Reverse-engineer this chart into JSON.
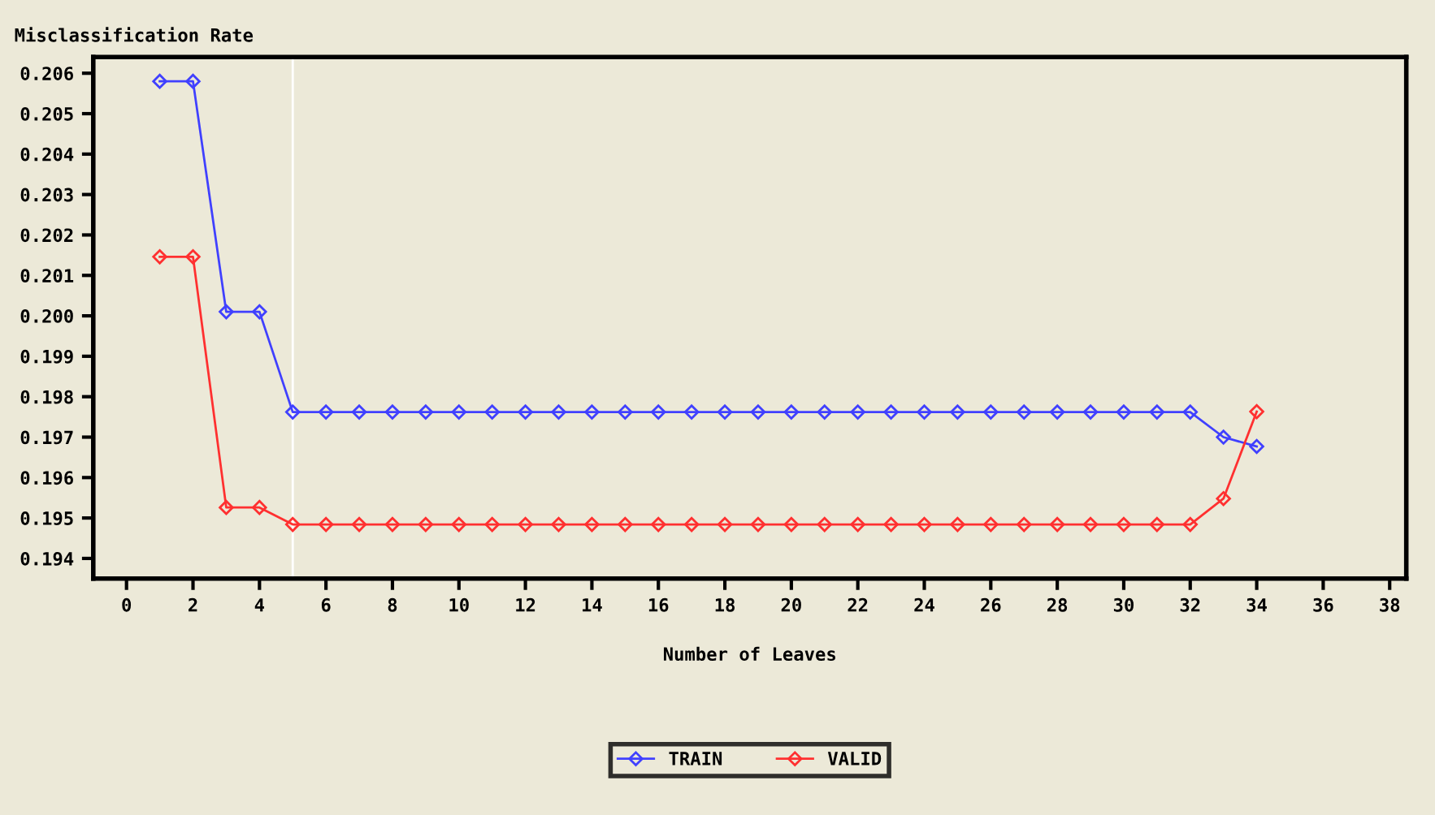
{
  "chart_data": {
    "type": "line",
    "ylabel": "Misclassification Rate",
    "xlabel": "Number of Leaves",
    "x": [
      1,
      2,
      3,
      4,
      5,
      6,
      7,
      8,
      9,
      10,
      11,
      12,
      13,
      14,
      15,
      16,
      17,
      18,
      19,
      20,
      21,
      22,
      23,
      24,
      25,
      26,
      27,
      28,
      29,
      30,
      31,
      32,
      33,
      34
    ],
    "series": [
      {
        "name": "TRAIN",
        "color": "#4040ff",
        "values": [
          0.2058,
          0.2058,
          0.2001,
          0.2001,
          0.19762,
          0.19762,
          0.19762,
          0.19762,
          0.19762,
          0.19762,
          0.19762,
          0.19762,
          0.19762,
          0.19762,
          0.19762,
          0.19762,
          0.19762,
          0.19762,
          0.19762,
          0.19762,
          0.19762,
          0.19762,
          0.19762,
          0.19762,
          0.19762,
          0.19762,
          0.19762,
          0.19762,
          0.19762,
          0.19762,
          0.19762,
          0.19762,
          0.197,
          0.19677
        ]
      },
      {
        "name": "VALID",
        "color": "#ff3030",
        "values": [
          0.20146,
          0.20146,
          0.19526,
          0.19526,
          0.19484,
          0.19484,
          0.19484,
          0.19484,
          0.19484,
          0.19484,
          0.19484,
          0.19484,
          0.19484,
          0.19484,
          0.19484,
          0.19484,
          0.19484,
          0.19484,
          0.19484,
          0.19484,
          0.19484,
          0.19484,
          0.19484,
          0.19484,
          0.19484,
          0.19484,
          0.19484,
          0.19484,
          0.19484,
          0.19484,
          0.19484,
          0.19484,
          0.19548,
          0.19763
        ]
      }
    ],
    "xlim": [
      -1,
      38.5
    ],
    "ylim": [
      0.1935,
      0.2064
    ],
    "xticks": [
      0,
      2,
      4,
      6,
      8,
      10,
      12,
      14,
      16,
      18,
      20,
      22,
      24,
      26,
      28,
      30,
      32,
      34,
      36,
      38
    ],
    "yticks": [
      {
        "value": 0.194,
        "label": "0.194"
      },
      {
        "value": 0.195,
        "label": "0.195"
      },
      {
        "value": 0.196,
        "label": "0.196"
      },
      {
        "value": 0.197,
        "label": "0.197"
      },
      {
        "value": 0.198,
        "label": "0.198"
      },
      {
        "value": 0.199,
        "label": "0.199"
      },
      {
        "value": 0.2,
        "label": "0.200"
      },
      {
        "value": 0.201,
        "label": "0.201"
      },
      {
        "value": 0.202,
        "label": "0.202"
      },
      {
        "value": 0.203,
        "label": "0.203"
      },
      {
        "value": 0.204,
        "label": "0.204"
      },
      {
        "value": 0.205,
        "label": "0.205"
      },
      {
        "value": 0.206,
        "label": "0.206"
      }
    ],
    "ref_lines": [
      {
        "axis": "x",
        "value": 5,
        "label": null,
        "color": "#ffffff"
      }
    ],
    "marker": "diamond",
    "line_style": "solid",
    "grid": false,
    "legend": "bottom"
  }
}
